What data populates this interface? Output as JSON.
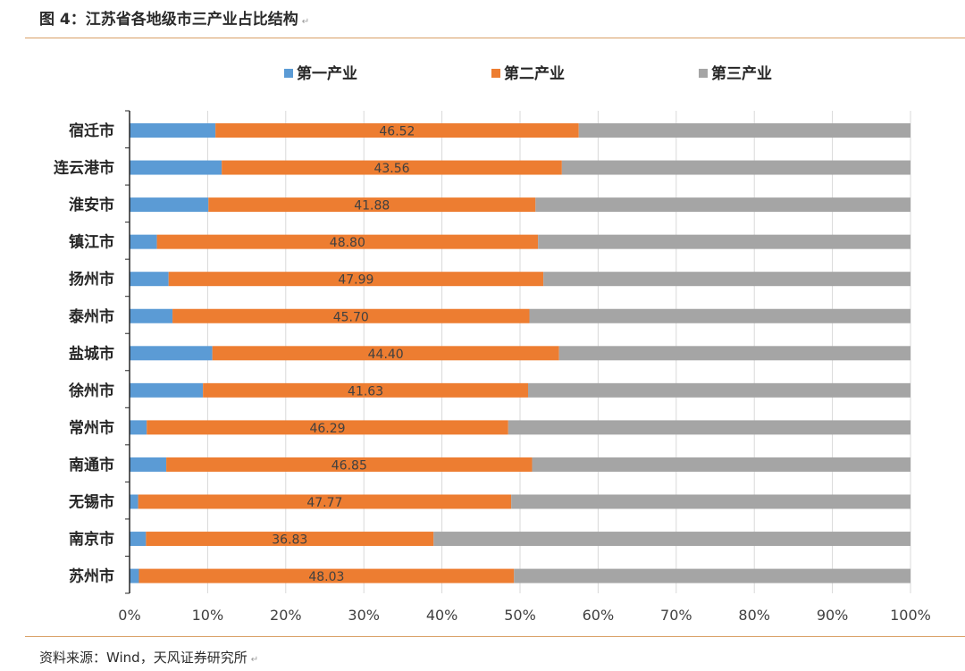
{
  "header": {
    "title": "图 4：江苏省各地级市三产业占比结构"
  },
  "footer": {
    "source": "资料来源：Wind，天风证券研究所"
  },
  "colors": {
    "primary": "#5b9bd5",
    "secondary": "#ed7d31",
    "tertiary": "#a5a5a5",
    "rule": "#d9a066"
  },
  "chart_data": {
    "type": "bar",
    "orientation": "horizontal",
    "stacked": "percent",
    "categories": [
      "宿迁市",
      "连云港市",
      "淮安市",
      "镇江市",
      "扬州市",
      "泰州市",
      "盐城市",
      "徐州市",
      "常州市",
      "南通市",
      "无锡市",
      "南京市",
      "苏州市"
    ],
    "series": [
      {
        "name": "第一产业",
        "color": "#5b9bd5",
        "values": [
          11.0,
          11.8,
          10.1,
          3.5,
          5.0,
          5.5,
          10.6,
          9.4,
          2.2,
          4.7,
          1.1,
          2.1,
          1.2
        ]
      },
      {
        "name": "第二产业",
        "color": "#ed7d31",
        "values": [
          46.52,
          43.56,
          41.88,
          48.8,
          47.99,
          45.7,
          44.4,
          41.63,
          46.29,
          46.85,
          47.77,
          36.83,
          48.03
        ],
        "labels": [
          "46.52",
          "43.56",
          "41.88",
          "48.80",
          "47.99",
          "45.70",
          "44.40",
          "41.63",
          "46.29",
          "46.85",
          "47.77",
          "36.83",
          "48.03"
        ]
      },
      {
        "name": "第三产业",
        "color": "#a5a5a5",
        "values": [
          42.48,
          44.64,
          48.02,
          47.7,
          47.01,
          48.8,
          45.0,
          48.97,
          51.51,
          48.45,
          51.13,
          61.07,
          50.77
        ]
      }
    ],
    "xlim": [
      0,
      100
    ],
    "xticks": [
      "0%",
      "10%",
      "20%",
      "30%",
      "40%",
      "50%",
      "60%",
      "70%",
      "80%",
      "90%",
      "100%"
    ],
    "grid": true,
    "legend_position": "top"
  }
}
